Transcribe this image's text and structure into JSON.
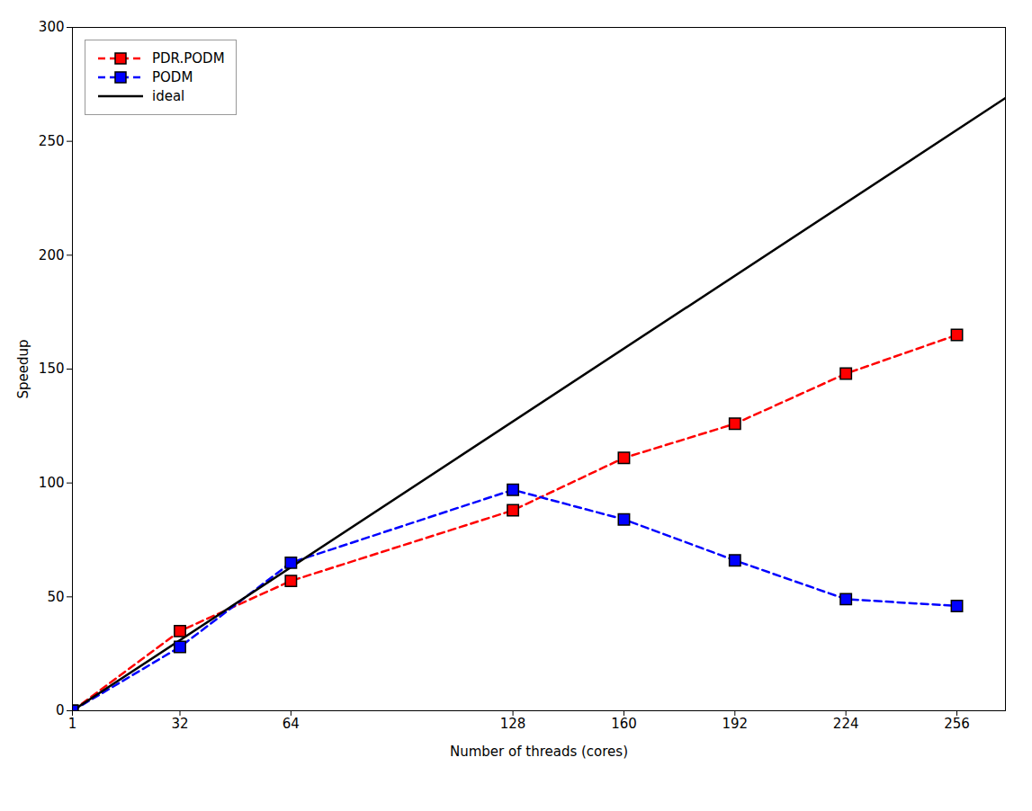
{
  "chart_data": {
    "type": "line",
    "xlabel": "Number of threads (cores)",
    "ylabel": "Speedup",
    "xlim": [
      1,
      270
    ],
    "ylim": [
      0,
      300
    ],
    "xticks": [
      1,
      32,
      64,
      128,
      160,
      192,
      224,
      256
    ],
    "yticks": [
      0,
      50,
      100,
      150,
      200,
      250,
      300
    ],
    "grid": false,
    "legend": "upper left",
    "series": [
      {
        "name": "PDR.PODM",
        "color": "#ff0000",
        "marker": "square",
        "line_style": "dashed",
        "x": [
          1,
          32,
          64,
          128,
          160,
          192,
          224,
          256
        ],
        "values": [
          0,
          35,
          57,
          88,
          111,
          126,
          148,
          165
        ]
      },
      {
        "name": "PODM",
        "color": "#0000ff",
        "marker": "square",
        "line_style": "dashed",
        "x": [
          1,
          32,
          64,
          128,
          160,
          192,
          224,
          256
        ],
        "values": [
          0,
          28,
          65,
          97,
          84,
          66,
          49,
          46
        ]
      },
      {
        "name": "ideal",
        "color": "#000000",
        "line_style": "solid",
        "x": [
          1,
          270
        ],
        "values": [
          0,
          269
        ]
      }
    ]
  }
}
